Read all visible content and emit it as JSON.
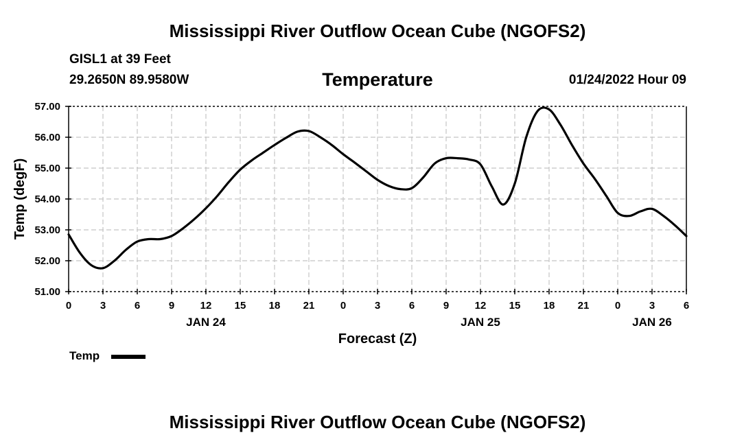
{
  "page": {
    "title": "Mississippi River Outflow Ocean Cube (NGOFS2)",
    "footer_title": "Mississippi River Outflow Ocean Cube (NGOFS2)"
  },
  "station": {
    "name": "GISL1 at 39 Feet",
    "coords": "29.2650N  89.9580W",
    "timestamp": "01/24/2022 Hour 09"
  },
  "legend": {
    "label": "Temp",
    "color": "#000000"
  },
  "chart_data": {
    "type": "line",
    "title": "Temperature",
    "xlabel": "Forecast (Z)",
    "ylabel": "Temp (degF)",
    "xlim": [
      0,
      54
    ],
    "ylim": [
      51,
      57
    ],
    "grid": true,
    "legend_placement": "bottom-left",
    "x_ticks": [
      {
        "x": 0,
        "label": "0"
      },
      {
        "x": 3,
        "label": "3"
      },
      {
        "x": 6,
        "label": "6"
      },
      {
        "x": 9,
        "label": "9"
      },
      {
        "x": 12,
        "label": "12"
      },
      {
        "x": 15,
        "label": "15"
      },
      {
        "x": 18,
        "label": "18"
      },
      {
        "x": 21,
        "label": "21"
      },
      {
        "x": 24,
        "label": "0"
      },
      {
        "x": 27,
        "label": "3"
      },
      {
        "x": 30,
        "label": "6"
      },
      {
        "x": 33,
        "label": "9"
      },
      {
        "x": 36,
        "label": "12"
      },
      {
        "x": 39,
        "label": "15"
      },
      {
        "x": 42,
        "label": "18"
      },
      {
        "x": 45,
        "label": "21"
      },
      {
        "x": 48,
        "label": "0"
      },
      {
        "x": 51,
        "label": "3"
      },
      {
        "x": 54,
        "label": "6"
      }
    ],
    "date_labels": [
      {
        "x": 12,
        "label": "JAN 24"
      },
      {
        "x": 36,
        "label": "JAN 25"
      },
      {
        "x": 51,
        "label": "JAN 26"
      }
    ],
    "y_ticks": [
      {
        "y": 51,
        "label": "51.00"
      },
      {
        "y": 52,
        "label": "52.00"
      },
      {
        "y": 53,
        "label": "53.00"
      },
      {
        "y": 54,
        "label": "54.00"
      },
      {
        "y": 55,
        "label": "55.00"
      },
      {
        "y": 56,
        "label": "56.00"
      },
      {
        "y": 57,
        "label": "57.00"
      }
    ],
    "series": [
      {
        "name": "Temp",
        "color": "#000000",
        "x": [
          0,
          1,
          2,
          3,
          4,
          5,
          6,
          7,
          8,
          9,
          10,
          11,
          12,
          13,
          14,
          15,
          16,
          17,
          18,
          19,
          20,
          21,
          22,
          23,
          24,
          25,
          26,
          27,
          28,
          29,
          30,
          31,
          32,
          33,
          34,
          35,
          36,
          37,
          38,
          39,
          40,
          41,
          42,
          43,
          44,
          45,
          46,
          47,
          48,
          49,
          50,
          51,
          52,
          53,
          54
        ],
        "y": [
          52.85,
          52.25,
          51.85,
          51.76,
          52.0,
          52.35,
          52.62,
          52.7,
          52.7,
          52.8,
          53.05,
          53.35,
          53.7,
          54.1,
          54.55,
          54.95,
          55.25,
          55.5,
          55.75,
          55.98,
          56.18,
          56.2,
          56.0,
          55.75,
          55.45,
          55.18,
          54.9,
          54.62,
          54.42,
          54.32,
          54.35,
          54.7,
          55.15,
          55.32,
          55.32,
          55.28,
          55.12,
          54.4,
          53.82,
          54.5,
          56.0,
          56.85,
          56.9,
          56.4,
          55.75,
          55.15,
          54.65,
          54.1,
          53.55,
          53.45,
          53.6,
          53.68,
          53.45,
          53.15,
          52.8
        ]
      }
    ]
  }
}
